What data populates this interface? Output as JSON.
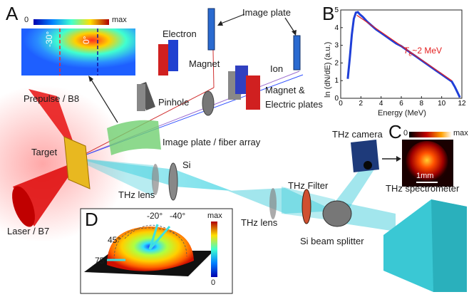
{
  "panels": {
    "a": "A",
    "b": "B",
    "c": "C",
    "d": "D"
  },
  "labels": {
    "image_plate_top": "Image plate",
    "electron": "Electron",
    "magnet": "Magnet",
    "ion": "Ion",
    "pinhole": "Pinhole",
    "magnet_electric_l1": "Magnet &",
    "magnet_electric_l2": "Electric plates",
    "prepulse": "Prepulse / B8",
    "target": "Target",
    "image_plate_fiber": "Image plate / fiber array",
    "si": "Si",
    "thz_lens_1": "THz lens",
    "thz_lens_2": "THz lens",
    "laser": "Laser / B7",
    "thz_filter": "THz Filter",
    "si_beam_splitter": "Si beam splitter",
    "thz_camera": "THz camera",
    "thz_spectrometer": "THz spectrometer"
  },
  "inset_a": {
    "scale_min": "0",
    "scale_max": "max",
    "angle_left": "-30°",
    "angle_right": "0°"
  },
  "inset_c": {
    "scale_min": "0",
    "scale_max": "max",
    "scalebar": "1mm"
  },
  "inset_d": {
    "angles": [
      "-20°",
      "-40°",
      "45°",
      "75°"
    ],
    "scale_max": "max",
    "scale_min": "0"
  },
  "chart_data": {
    "type": "line",
    "title": "",
    "xlabel": "Energy (MeV)",
    "ylabel": "ln (dN/dE) (a.u.)",
    "annotation": "T",
    "annotation_sub": "e",
    "annotation_rest": "~2 MeV",
    "xlim": [
      0,
      12
    ],
    "ylim": [
      0,
      5
    ],
    "xticks": [
      0,
      2,
      4,
      6,
      8,
      10,
      12
    ],
    "yticks": [
      0,
      1,
      2,
      3,
      4,
      5
    ],
    "grid": false,
    "series": [
      {
        "color": "#1f3fd8",
        "x": [
          0.7,
          0.9,
          1.1,
          1.3,
          1.5,
          1.7,
          1.9,
          2.2,
          2.6,
          3.0,
          3.5,
          4.0,
          4.5,
          5.0,
          5.5,
          6.0,
          6.5,
          7.0,
          7.5,
          8.0,
          8.5,
          9.0,
          9.5,
          10.0,
          10.5,
          11.0,
          11.3,
          11.6,
          11.8
        ],
        "y": [
          1.1,
          2.3,
          3.6,
          4.5,
          4.85,
          4.88,
          4.75,
          4.6,
          4.35,
          4.15,
          3.9,
          3.7,
          3.5,
          3.3,
          3.1,
          2.95,
          2.75,
          2.55,
          2.35,
          2.15,
          1.95,
          1.75,
          1.55,
          1.35,
          1.15,
          0.95,
          0.65,
          0.3,
          0.05
        ]
      },
      {
        "color": "#e41f1f",
        "x": [
          1.6,
          11.0
        ],
        "y": [
          4.7,
          1.0
        ]
      }
    ]
  }
}
